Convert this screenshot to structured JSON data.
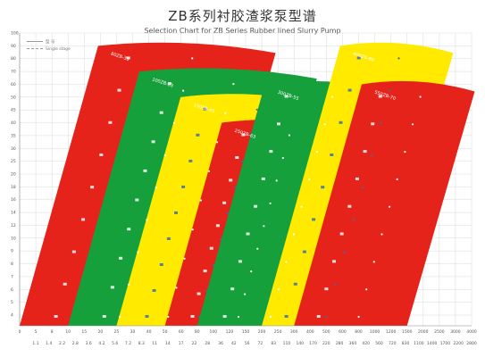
{
  "chart_data": {
    "type": "area",
    "title": "ZB系列衬胶渣浆泵型谱",
    "subtitle": "Selection Chart for ZB Series Rubber lined Slurry Pump",
    "legend": [
      {
        "label": "型 号",
        "style": "solid"
      },
      {
        "label": "Single stage",
        "style": "dashed"
      }
    ],
    "colors": {
      "red": "#e5231b",
      "green": "#15a03c",
      "yellow": "#ffea00",
      "grid": "#d9d9d9",
      "axis": "#888888"
    },
    "y_ticks": [
      "100",
      "90",
      "80",
      "70",
      "60",
      "50",
      "45",
      "40",
      "35",
      "30",
      "25",
      "20",
      "18",
      "16",
      "14",
      "12",
      "10",
      "9",
      "8",
      "7",
      "6",
      "5",
      "4"
    ],
    "x_ticks": [
      "0",
      "5",
      "8",
      "10",
      "15",
      "20",
      "25",
      "30",
      "40",
      "50",
      "60",
      "80",
      "100",
      "120",
      "150",
      "200",
      "250",
      "300",
      "400",
      "500",
      "600",
      "800",
      "1000",
      "1200",
      "1500",
      "2000",
      "2500",
      "3000",
      "4000"
    ],
    "x2_ticks": [
      "1.1",
      "1.4",
      "2.2",
      "2.8",
      "3.6",
      "4.2",
      "5.6",
      "7.2",
      "8.3",
      "11",
      "14",
      "17",
      "22",
      "28",
      "36",
      "42",
      "56",
      "72",
      "83",
      "110",
      "140",
      "170",
      "220",
      "280",
      "360",
      "420",
      "560",
      "720",
      "830",
      "1100",
      "1400",
      "1700",
      "2200",
      "2800"
    ],
    "series": [
      {
        "color": "red",
        "x_range": [
          "0",
          "80"
        ],
        "y_range": [
          "5",
          "90"
        ]
      },
      {
        "color": "green",
        "x_range": [
          "10",
          "150"
        ],
        "y_range": [
          "4",
          "70"
        ]
      },
      {
        "color": "yellow",
        "x_range": [
          "25",
          "200"
        ],
        "y_range": [
          "4",
          "50"
        ]
      },
      {
        "color": "red",
        "x_range": [
          "50",
          "300"
        ],
        "y_range": [
          "4",
          "40"
        ]
      },
      {
        "color": "green",
        "x_range": [
          "80",
          "500"
        ],
        "y_range": [
          "4",
          "60"
        ]
      },
      {
        "color": "yellow",
        "x_range": [
          "200",
          "1000"
        ],
        "y_range": [
          "4",
          "90"
        ]
      },
      {
        "color": "red",
        "x_range": [
          "300",
          "1500"
        ],
        "y_range": [
          "4",
          "60"
        ]
      }
    ],
    "band_labels": [
      "80ZB-35",
      "100ZB-33",
      "150ZB-45",
      "250ZB-63",
      "300ZB-55",
      "400ZB-80",
      "550ZB-70"
    ]
  }
}
